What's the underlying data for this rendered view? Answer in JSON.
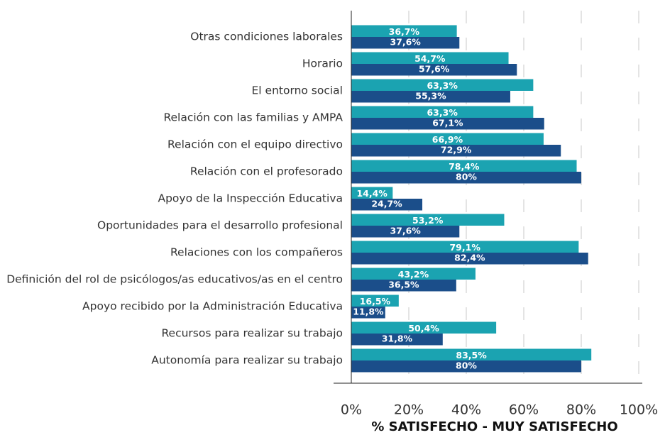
{
  "chart_data": {
    "type": "barh",
    "categories": [
      "Otras condiciones laborales",
      "Horario",
      "El entorno social",
      "Relación con las familias y AMPA",
      "Relación con el equipo directivo",
      "Relación con el profesorado",
      "Apoyo de la Inspección Educativa",
      "Oportunidades para el desarrollo profesional",
      "Relaciones con los compañeros",
      "Definición del rol de psicólogos/as educativos/as en el centro",
      "Apoyo recibido por la Administración Educativa",
      "Recursos para realizar su trabajo",
      "Autonomía para realizar su trabajo"
    ],
    "series": [
      {
        "color": "#1ba3b1",
        "values": [
          36.7,
          54.7,
          63.3,
          63.3,
          66.9,
          78.4,
          14.4,
          53.2,
          79.1,
          43.2,
          16.5,
          50.4,
          83.5
        ],
        "value_labels": [
          "36,7%",
          "54,7%",
          "63,3%",
          "63,3%",
          "66,9%",
          "78,4%",
          "14,4%",
          "53,2%",
          "79,1%",
          "43,2%",
          "16,5%",
          "50,4%",
          "83,5%"
        ]
      },
      {
        "color": "#1b4e8a",
        "values": [
          37.6,
          57.6,
          55.3,
          67.1,
          72.9,
          80,
          24.7,
          37.6,
          82.4,
          36.5,
          11.8,
          31.8,
          80
        ],
        "value_labels": [
          "37,6%",
          "57,6%",
          "55,3%",
          "67,1%",
          "72,9%",
          "80%",
          "24,7%",
          "37,6%",
          "82,4%",
          "36,5%",
          "11,8%",
          "31,8%",
          "80%"
        ]
      }
    ],
    "xlabel": "% SATISFECHO - MUY SATISFECHO",
    "xlim": [
      0,
      100
    ],
    "xticks": [
      {
        "value": 0,
        "label": "0%"
      },
      {
        "value": 20,
        "label": "20%"
      },
      {
        "value": 40,
        "label": "40%"
      },
      {
        "value": 60,
        "label": "60%"
      },
      {
        "value": 80,
        "label": "80%"
      },
      {
        "value": 100,
        "label": "100%"
      }
    ],
    "grid": true
  }
}
